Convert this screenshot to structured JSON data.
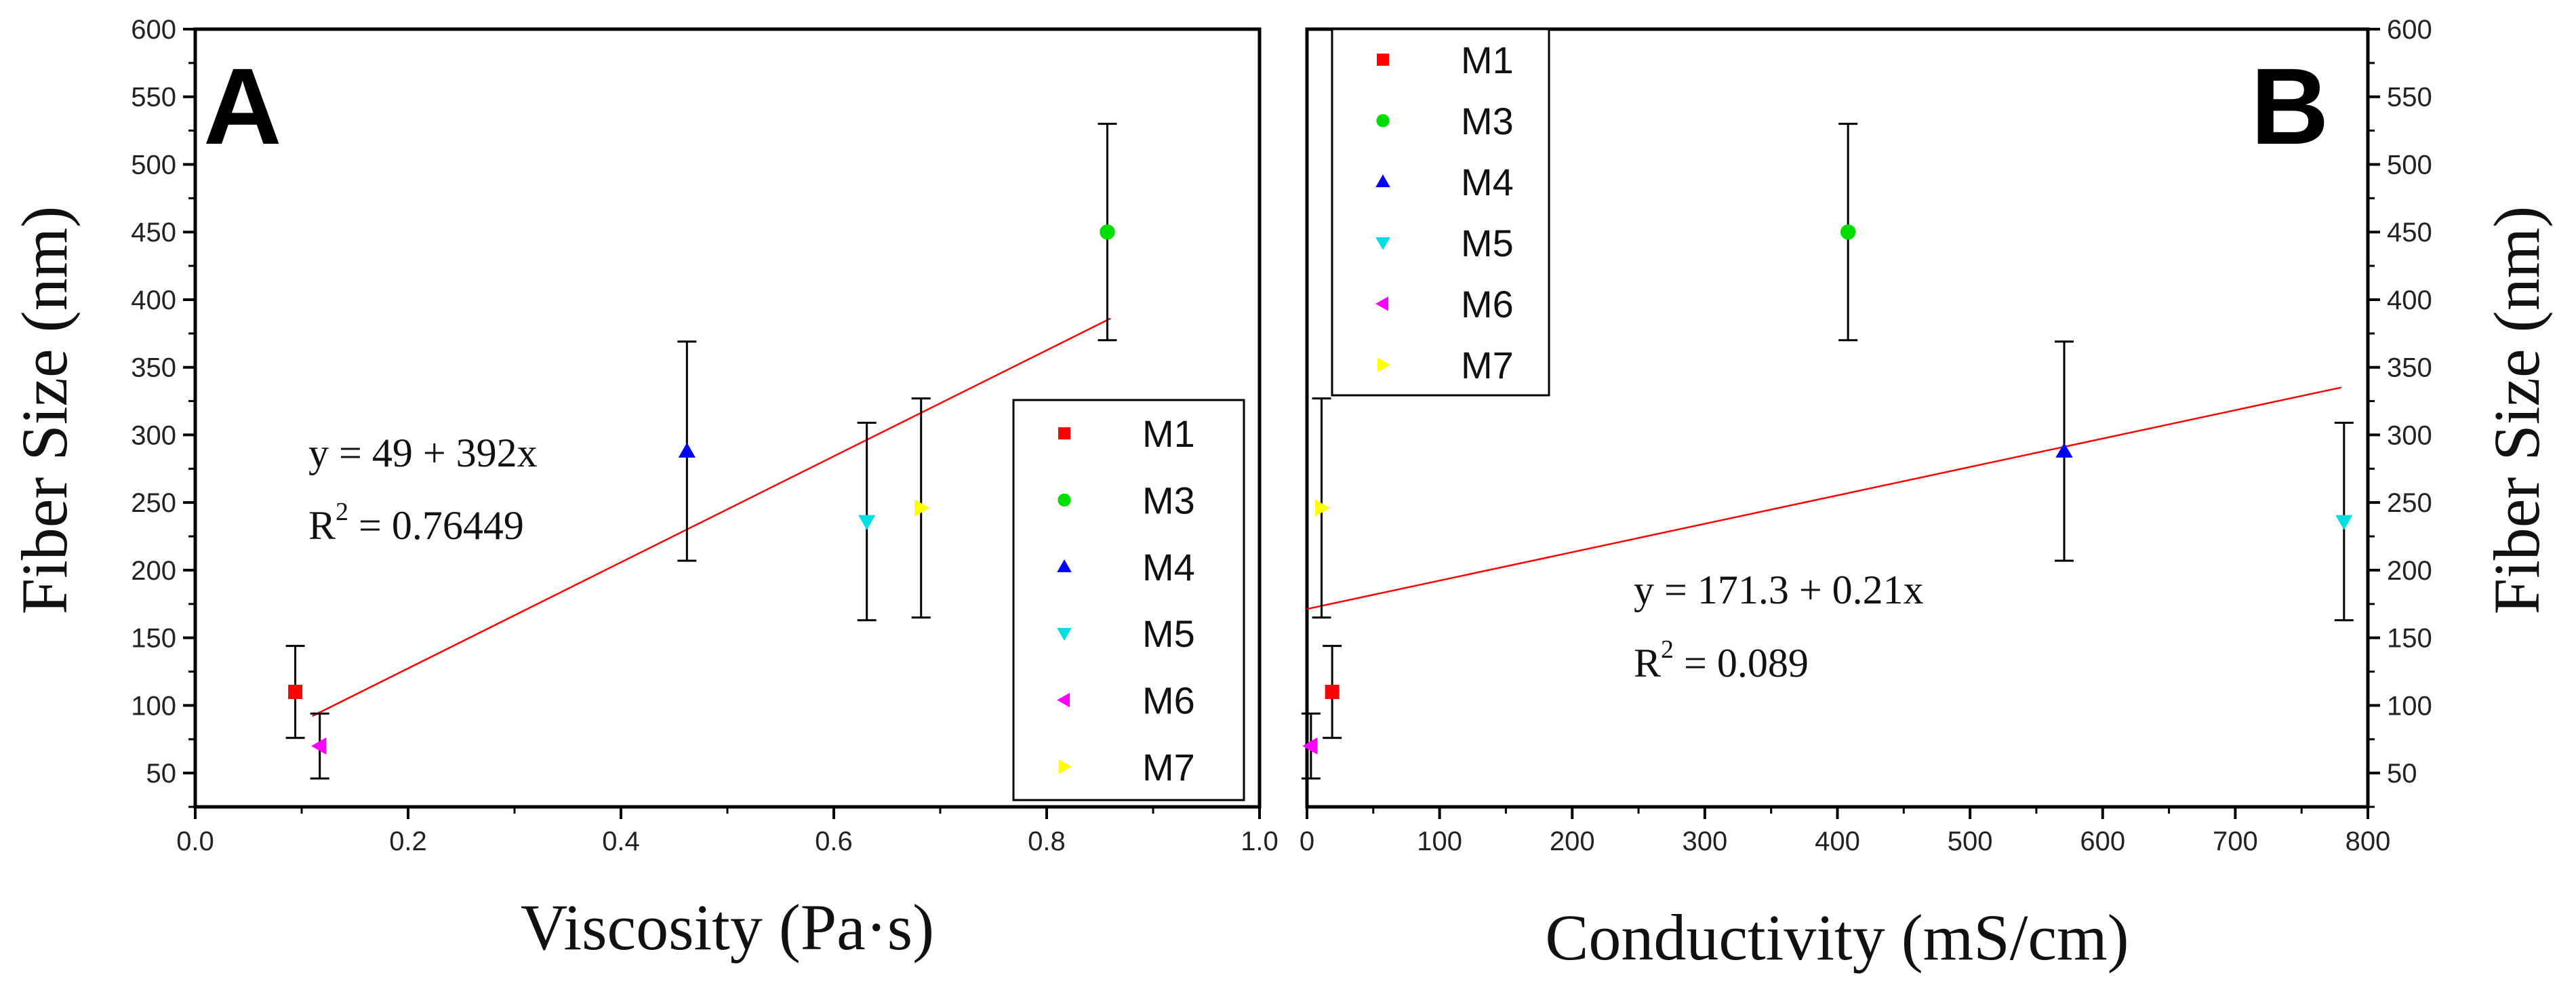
{
  "chart_data": [
    {
      "type": "scatter",
      "panel_label": "A",
      "xlabel": "Viscosity (Pa·s)",
      "ylabel": "Fiber Size (nm)",
      "xlim": [
        0.0,
        1.0
      ],
      "ylim": [
        25,
        600
      ],
      "xticks": [
        "0.0",
        "0.2",
        "0.4",
        "0.6",
        "0.8",
        "1.0"
      ],
      "yticks": [
        "50",
        "100",
        "150",
        "200",
        "250",
        "300",
        "350",
        "400",
        "450",
        "500",
        "550",
        "600"
      ],
      "legend_position": "bottom-right",
      "series": [
        {
          "name": "M1",
          "marker": "square",
          "color": "#ff0000",
          "x": 0.094,
          "y": 110,
          "yerr_low": 76,
          "yerr_high": 144
        },
        {
          "name": "M3",
          "marker": "circle",
          "color": "#00dd00",
          "x": 0.857,
          "y": 450,
          "yerr_low": 370,
          "yerr_high": 530
        },
        {
          "name": "M4",
          "marker": "triangle-up",
          "color": "#0000ff",
          "x": 0.462,
          "y": 288,
          "yerr_low": 207,
          "yerr_high": 369
        },
        {
          "name": "M5",
          "marker": "triangle-down",
          "color": "#00e0e0",
          "x": 0.631,
          "y": 236,
          "yerr_low": 163,
          "yerr_high": 309
        },
        {
          "name": "M6",
          "marker": "triangle-left",
          "color": "#ff00ff",
          "x": 0.117,
          "y": 70,
          "yerr_low": 46,
          "yerr_high": 94
        },
        {
          "name": "M7",
          "marker": "triangle-right",
          "color": "#ffff00",
          "x": 0.682,
          "y": 246,
          "yerr_low": 165,
          "yerr_high": 327
        }
      ],
      "fit": {
        "intercept": 49,
        "slope": 392,
        "x_range": [
          0.11,
          0.86
        ],
        "color": "#ff0000"
      },
      "annotation": {
        "equation": "y = 49 + 392x",
        "r2_text": "R",
        "r2_sup": "2",
        "r2_value": " = 0.76449"
      }
    },
    {
      "type": "scatter",
      "panel_label": "B",
      "xlabel": "Conductivity (mS/cm)",
      "ylabel": "Fiber Size (nm)",
      "xlim": [
        0,
        800
      ],
      "ylim": [
        25,
        600
      ],
      "xticks": [
        "0",
        "100",
        "200",
        "300",
        "400",
        "500",
        "600",
        "700",
        "800"
      ],
      "yticks": [
        "50",
        "100",
        "150",
        "200",
        "250",
        "300",
        "350",
        "400",
        "450",
        "500",
        "550",
        "600"
      ],
      "legend_position": "top-left",
      "series": [
        {
          "name": "M1",
          "marker": "square",
          "color": "#ff0000",
          "x": 19,
          "y": 110,
          "yerr_low": 76,
          "yerr_high": 144
        },
        {
          "name": "M3",
          "marker": "circle",
          "color": "#00dd00",
          "x": 408,
          "y": 450,
          "yerr_low": 370,
          "yerr_high": 530
        },
        {
          "name": "M4",
          "marker": "triangle-up",
          "color": "#0000ff",
          "x": 571,
          "y": 288,
          "yerr_low": 207,
          "yerr_high": 369
        },
        {
          "name": "M5",
          "marker": "triangle-down",
          "color": "#00e0e0",
          "x": 782,
          "y": 236,
          "yerr_low": 163,
          "yerr_high": 309
        },
        {
          "name": "M6",
          "marker": "triangle-left",
          "color": "#ff00ff",
          "x": 3,
          "y": 70,
          "yerr_low": 46,
          "yerr_high": 94
        },
        {
          "name": "M7",
          "marker": "triangle-right",
          "color": "#ffff00",
          "x": 11,
          "y": 246,
          "yerr_low": 165,
          "yerr_high": 327
        }
      ],
      "fit": {
        "intercept": 171.3,
        "slope": 0.21,
        "x_range": [
          0,
          780
        ],
        "color": "#ff0000"
      },
      "annotation": {
        "equation": "y = 171.3 + 0.21x",
        "r2_text": "R",
        "r2_sup": "2",
        "r2_value": " = 0.089"
      }
    }
  ]
}
